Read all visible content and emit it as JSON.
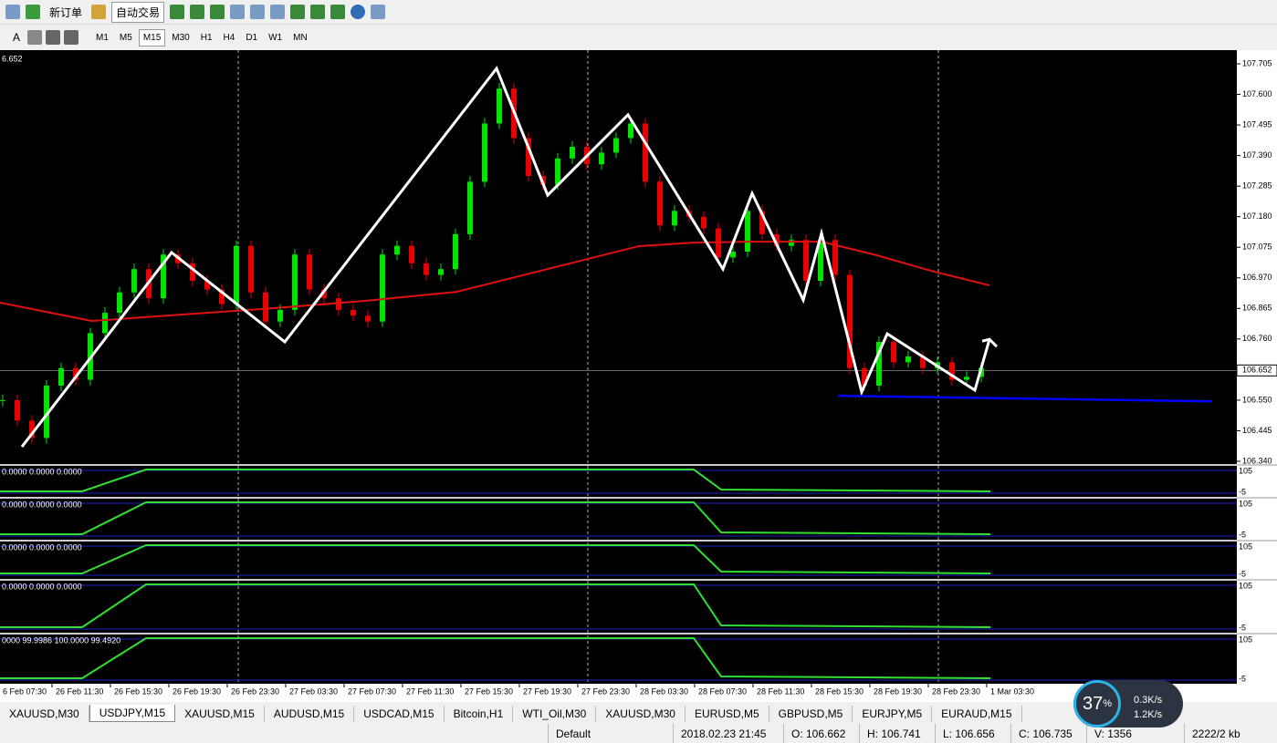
{
  "toolbar": {
    "new_order": "新订单",
    "auto_trading": "自动交易",
    "text_tool": "A",
    "timeframes": [
      "M1",
      "M5",
      "M15",
      "M30",
      "H1",
      "H4",
      "D1",
      "W1",
      "MN"
    ],
    "active_timeframe": 2
  },
  "chart_data": {
    "type": "candlestick",
    "corner_label": "6.652",
    "ylim": [
      106.34,
      107.705
    ],
    "yticks": [
      107.705,
      {
        "value": 107.6,
        "label": "107.600"
      },
      107.495,
      {
        "value": 107.39,
        "label": "107.390"
      },
      107.285,
      {
        "value": 107.18,
        "label": "107.180"
      },
      107.075,
      {
        "value": 106.97,
        "label": "106.970"
      },
      106.865,
      {
        "value": 106.76,
        "label": "106.760"
      },
      {
        "value": 106.55,
        "label": "106.550"
      },
      106.445,
      {
        "value": 106.34,
        "label": "106.340"
      }
    ],
    "current_price": 106.652,
    "x": [
      "6 Feb 07:30",
      "26 Feb 11:30",
      "26 Feb 15:30",
      "26 Feb 19:30",
      "26 Feb 23:30",
      "27 Feb 03:30",
      "27 Feb 07:30",
      "27 Feb 11:30",
      "27 Feb 15:30",
      "27 Feb 19:30",
      "27 Feb 23:30",
      "28 Feb 03:30",
      "28 Feb 07:30",
      "28 Feb 11:30",
      "28 Feb 15:30",
      "28 Feb 19:30",
      "28 Feb 23:30",
      "1 Mar 03:30"
    ],
    "closes": [
      106.55,
      106.48,
      106.42,
      106.6,
      106.66,
      106.62,
      106.78,
      106.85,
      106.92,
      107.0,
      106.9,
      107.05,
      107.02,
      106.96,
      106.93,
      106.88,
      107.08,
      106.92,
      106.82,
      106.86,
      107.05,
      106.93,
      106.9,
      106.86,
      106.84,
      106.82,
      107.05,
      107.08,
      107.02,
      106.98,
      107.0,
      107.12,
      107.3,
      107.5,
      107.62,
      107.45,
      107.32,
      107.29,
      107.38,
      107.42,
      107.36,
      107.4,
      107.45,
      107.5,
      107.3,
      107.15,
      107.2,
      107.18,
      107.14,
      107.04,
      107.06,
      107.2,
      107.12,
      107.08,
      107.1,
      106.96,
      107.1,
      106.98,
      106.66,
      106.6,
      106.75,
      106.68,
      106.7,
      106.66,
      106.68,
      106.62,
      106.63,
      106.66
    ],
    "up_color": "#00e600",
    "down_color": "#e60000",
    "ma": {
      "color": "#e01010",
      "bars": [
        0,
        25,
        50,
        75,
        100,
        125,
        140,
        160,
        175,
        190,
        205,
        225,
        240,
        255,
        271
      ],
      "values": [
        106.885,
        106.822,
        106.844,
        106.866,
        106.891,
        106.922,
        106.969,
        107.032,
        107.079,
        107.091,
        107.094,
        107.094,
        107.048,
        106.994,
        106.944
      ]
    },
    "zigzag": {
      "color": "#ffffff",
      "bars": [
        6,
        47,
        78,
        136,
        150,
        172,
        198,
        206,
        220,
        225,
        236,
        243,
        267,
        271
      ],
      "values": [
        106.39,
        107.057,
        106.75,
        107.689,
        107.254,
        107.53,
        107.0,
        107.26,
        106.894,
        107.123,
        106.578,
        106.778,
        106.584,
        106.759
      ]
    },
    "support": {
      "color": "#0000ff",
      "bars": [
        229.5,
        332
      ],
      "values": [
        106.565,
        106.546
      ]
    },
    "indicators": [
      {
        "label": "0.0000 0.0000 0.0000",
        "top": "105",
        "bottom": "-5"
      },
      {
        "label": "0.0000 0.0000 0.0000",
        "top": "105",
        "bottom": "-5"
      },
      {
        "label": "0.0000 0.0000 0.0000",
        "top": "105",
        "bottom": "-5"
      },
      {
        "label": "0.0000 0.0000 0.0000",
        "top": "105",
        "bottom": "-5"
      },
      {
        "label": "0000 99.9986 100.0000 99.4920",
        "top": "105",
        "bottom": "-5"
      }
    ]
  },
  "tabs": [
    "XAUUSD,M30",
    "USDJPY,M15",
    "XAUUSD,M15",
    "AUDUSD,M15",
    "USDCAD,M15",
    "Bitcoin,H1",
    "WTI_Oil,M30",
    "XAUUSD,M30",
    "EURUSD,M5",
    "GBPUSD,M5",
    "EURJPY,M5",
    "EURAUD,M15"
  ],
  "active_tab": 1,
  "status": {
    "profile": "Default",
    "time": "2018.02.23 21:45",
    "open": "O: 106.662",
    "high": "H: 106.741",
    "low": "L: 106.656",
    "close": "C: 106.735",
    "volume": "V: 1356",
    "traffic": "2222/2 kb"
  },
  "network": {
    "percent": "37",
    "unit": "%",
    "up": "0.3K/s",
    "down": "1.2K/s"
  }
}
